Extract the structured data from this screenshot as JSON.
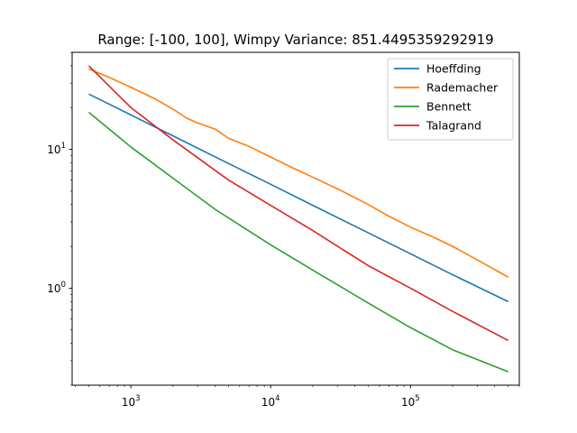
{
  "chart_data": {
    "type": "line",
    "title": "Range: [-100, 100], Wimpy Variance: 851.4495359292919",
    "xlabel": "",
    "ylabel": "",
    "xscale": "log",
    "yscale": "log",
    "xlim": [
      380,
      600000
    ],
    "ylim": [
      0.2,
      50
    ],
    "grid": false,
    "legend_position": "top-right",
    "x_ticks": [
      {
        "value": 1000,
        "base": "10",
        "exp": "3"
      },
      {
        "value": 10000,
        "base": "10",
        "exp": "4"
      },
      {
        "value": 100000,
        "base": "10",
        "exp": "5"
      }
    ],
    "y_ticks": [
      {
        "value": 1,
        "base": "10",
        "exp": "0"
      },
      {
        "value": 10,
        "base": "10",
        "exp": "1"
      }
    ],
    "series": [
      {
        "name": "Hoeffding",
        "color": "#1f77b4",
        "points": [
          [
            500,
            25
          ],
          [
            1000,
            17.7
          ],
          [
            2000,
            12.5
          ],
          [
            5000,
            7.9
          ],
          [
            10000,
            5.6
          ],
          [
            20000,
            3.95
          ],
          [
            50000,
            2.5
          ],
          [
            100000,
            1.77
          ],
          [
            200000,
            1.25
          ],
          [
            500000,
            0.8
          ]
        ]
      },
      {
        "name": "Rademacher",
        "color": "#ff7f0e",
        "points": [
          [
            500,
            38
          ],
          [
            700,
            33
          ],
          [
            1000,
            28
          ],
          [
            1500,
            23
          ],
          [
            2000,
            19.5
          ],
          [
            2500,
            16.8
          ],
          [
            3000,
            15.5
          ],
          [
            4000,
            14
          ],
          [
            5000,
            12
          ],
          [
            7000,
            10.5
          ],
          [
            10000,
            8.8
          ],
          [
            15000,
            7.2
          ],
          [
            20000,
            6.3
          ],
          [
            30000,
            5.2
          ],
          [
            50000,
            4
          ],
          [
            70000,
            3.3
          ],
          [
            100000,
            2.75
          ],
          [
            150000,
            2.3
          ],
          [
            200000,
            2
          ],
          [
            300000,
            1.6
          ],
          [
            500000,
            1.2
          ]
        ]
      },
      {
        "name": "Bennett",
        "color": "#2ca02c",
        "points": [
          [
            500,
            18.5
          ],
          [
            1000,
            10.4
          ],
          [
            2000,
            6.2
          ],
          [
            4000,
            3.7
          ],
          [
            10000,
            2.05
          ],
          [
            20000,
            1.35
          ],
          [
            50000,
            0.78
          ],
          [
            100000,
            0.52
          ],
          [
            200000,
            0.36
          ],
          [
            500000,
            0.25
          ]
        ]
      },
      {
        "name": "Talagrand",
        "color": "#d62728",
        "points": [
          [
            500,
            40
          ],
          [
            1000,
            20
          ],
          [
            2000,
            11.7
          ],
          [
            5000,
            6
          ],
          [
            10000,
            3.95
          ],
          [
            20000,
            2.6
          ],
          [
            50000,
            1.45
          ],
          [
            100000,
            1
          ],
          [
            200000,
            0.68
          ],
          [
            500000,
            0.42
          ]
        ]
      }
    ]
  }
}
